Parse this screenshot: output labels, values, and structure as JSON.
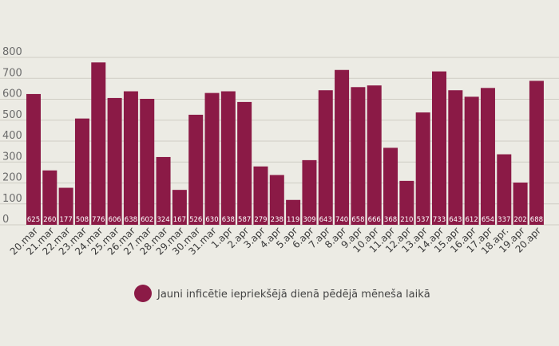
{
  "chart_data": {
    "type": "bar",
    "categories": [
      "20.mar",
      "21.mar",
      "22.mar",
      "23.mar",
      "24.mar",
      "25.mar",
      "26.mar",
      "27.mar",
      "28.mar",
      "29.mar",
      "30.mar",
      "31.mar",
      "1.apr",
      "2.apr",
      "3.apr",
      "4.apr",
      "5.apr",
      "6.apr",
      "7.apr",
      "8.apr",
      "9.apr",
      "10.apr",
      "11.apr",
      "12.apr",
      "13.apr",
      "14.apr",
      "15.apr",
      "16.apr",
      "17.apr",
      "18.apr.",
      "19.apr",
      "20.apr"
    ],
    "series": [
      {
        "name": "Jauni inficētie iepriekšējā dienā pēdējā mēneša laikā",
        "values": [
          625,
          260,
          177,
          508,
          776,
          606,
          638,
          602,
          324,
          167,
          526,
          630,
          638,
          587,
          279,
          238,
          119,
          309,
          643,
          740,
          658,
          666,
          368,
          210,
          537,
          733,
          643,
          612,
          654,
          337,
          202,
          688
        ],
        "color": "#8b1a46"
      }
    ],
    "yticks": [
      0,
      100,
      200,
      300,
      400,
      500,
      600,
      700,
      800
    ],
    "ylim": [
      0,
      800
    ],
    "grid": true,
    "legend": "bottom",
    "title": "",
    "xlabel": "",
    "ylabel": ""
  }
}
